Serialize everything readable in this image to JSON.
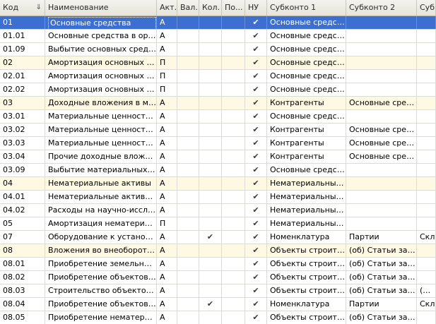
{
  "columns": [
    {
      "key": "code",
      "label": "Код"
    },
    {
      "key": "name",
      "label": "Наименование"
    },
    {
      "key": "act",
      "label": "Акт."
    },
    {
      "key": "val",
      "label": "Вал."
    },
    {
      "key": "kol",
      "label": "Кол."
    },
    {
      "key": "po",
      "label": "По..."
    },
    {
      "key": "nu",
      "label": "НУ"
    },
    {
      "key": "sub1",
      "label": "Субконто 1"
    },
    {
      "key": "sub2",
      "label": "Субконто 2"
    },
    {
      "key": "sub3",
      "label": "Субк"
    }
  ],
  "check_glyph": "✔",
  "colors": {
    "selected": "#3c6fd0",
    "group_row": "#fdf9e3"
  },
  "rows": [
    {
      "code": "01",
      "name": "Основные средства",
      "act": "А",
      "val": "",
      "kol": false,
      "po": "",
      "nu": true,
      "sub1": "Основные средства",
      "sub2": "",
      "sub3": "",
      "group": true,
      "selected": true
    },
    {
      "code": "01.01",
      "name": "Основные средства в орга...",
      "act": "А",
      "val": "",
      "kol": false,
      "po": "",
      "nu": true,
      "sub1": "Основные средства",
      "sub2": "",
      "sub3": "",
      "group": false,
      "selected": false
    },
    {
      "code": "01.09",
      "name": "Выбытие основных средств",
      "act": "А",
      "val": "",
      "kol": false,
      "po": "",
      "nu": true,
      "sub1": "Основные средства",
      "sub2": "",
      "sub3": "",
      "group": false,
      "selected": false
    },
    {
      "code": "02",
      "name": "Амортизация основных ср...",
      "act": "П",
      "val": "",
      "kol": false,
      "po": "",
      "nu": true,
      "sub1": "Основные средства",
      "sub2": "",
      "sub3": "",
      "group": true,
      "selected": false
    },
    {
      "code": "02.01",
      "name": "Амортизация основных ср...",
      "act": "П",
      "val": "",
      "kol": false,
      "po": "",
      "nu": true,
      "sub1": "Основные средства",
      "sub2": "",
      "sub3": "",
      "group": false,
      "selected": false
    },
    {
      "code": "02.02",
      "name": "Амортизация основных ср...",
      "act": "П",
      "val": "",
      "kol": false,
      "po": "",
      "nu": true,
      "sub1": "Основные средства",
      "sub2": "",
      "sub3": "",
      "group": false,
      "selected": false
    },
    {
      "code": "03",
      "name": "Доходные вложения в мат...",
      "act": "А",
      "val": "",
      "kol": false,
      "po": "",
      "nu": true,
      "sub1": "Контрагенты",
      "sub2": "Основные сред...",
      "sub3": "",
      "group": true,
      "selected": false
    },
    {
      "code": "03.01",
      "name": "Материальные ценности в ...",
      "act": "А",
      "val": "",
      "kol": false,
      "po": "",
      "nu": true,
      "sub1": "Основные средства",
      "sub2": "",
      "sub3": "",
      "group": false,
      "selected": false
    },
    {
      "code": "03.02",
      "name": "Материальные ценности п...",
      "act": "А",
      "val": "",
      "kol": false,
      "po": "",
      "nu": true,
      "sub1": "Контрагенты",
      "sub2": "Основные сред...",
      "sub3": "",
      "group": false,
      "selected": false
    },
    {
      "code": "03.03",
      "name": "Материальные ценности п...",
      "act": "А",
      "val": "",
      "kol": false,
      "po": "",
      "nu": true,
      "sub1": "Контрагенты",
      "sub2": "Основные сред...",
      "sub3": "",
      "group": false,
      "selected": false
    },
    {
      "code": "03.04",
      "name": "Прочие доходные вложения",
      "act": "А",
      "val": "",
      "kol": false,
      "po": "",
      "nu": true,
      "sub1": "Контрагенты",
      "sub2": "Основные сред...",
      "sub3": "",
      "group": false,
      "selected": false
    },
    {
      "code": "03.09",
      "name": "Выбытие материальных це...",
      "act": "А",
      "val": "",
      "kol": false,
      "po": "",
      "nu": true,
      "sub1": "Основные средства",
      "sub2": "",
      "sub3": "",
      "group": false,
      "selected": false
    },
    {
      "code": "04",
      "name": "Нематериальные активы",
      "act": "А",
      "val": "",
      "kol": false,
      "po": "",
      "nu": true,
      "sub1": "Нематериальные ...",
      "sub2": "",
      "sub3": "",
      "group": true,
      "selected": false
    },
    {
      "code": "04.01",
      "name": "Нематериальные активы о...",
      "act": "А",
      "val": "",
      "kol": false,
      "po": "",
      "nu": true,
      "sub1": "Нематериальные ...",
      "sub2": "",
      "sub3": "",
      "group": false,
      "selected": false
    },
    {
      "code": "04.02",
      "name": "Расходы на научно-исслед...",
      "act": "А",
      "val": "",
      "kol": false,
      "po": "",
      "nu": true,
      "sub1": "Нематериальные ...",
      "sub2": "",
      "sub3": "",
      "group": false,
      "selected": false
    },
    {
      "code": "05",
      "name": "Амортизация нематериал...",
      "act": "П",
      "val": "",
      "kol": false,
      "po": "",
      "nu": true,
      "sub1": "Нематериальные ...",
      "sub2": "",
      "sub3": "",
      "group": false,
      "selected": false
    },
    {
      "code": "07",
      "name": "Оборудование к установке",
      "act": "А",
      "val": "",
      "kol": true,
      "po": "",
      "nu": true,
      "sub1": "Номенклатура",
      "sub2": "Партии",
      "sub3": "Скл",
      "group": false,
      "selected": false
    },
    {
      "code": "08",
      "name": "Вложения во внеоборотны...",
      "act": "А",
      "val": "",
      "kol": false,
      "po": "",
      "nu": true,
      "sub1": "Объекты строите...",
      "sub2": "(об) Статьи зат...",
      "sub3": "",
      "group": true,
      "selected": false
    },
    {
      "code": "08.01",
      "name": "Приобретение земельных ...",
      "act": "А",
      "val": "",
      "kol": false,
      "po": "",
      "nu": true,
      "sub1": "Объекты строите...",
      "sub2": "(об) Статьи зат...",
      "sub3": "",
      "group": false,
      "selected": false
    },
    {
      "code": "08.02",
      "name": "Приобретение объектов п...",
      "act": "А",
      "val": "",
      "kol": false,
      "po": "",
      "nu": true,
      "sub1": "Объекты строите...",
      "sub2": "(об) Статьи зат...",
      "sub3": "",
      "group": false,
      "selected": false
    },
    {
      "code": "08.03",
      "name": "Строительство объектов о...",
      "act": "А",
      "val": "",
      "kol": false,
      "po": "",
      "nu": true,
      "sub1": "Объекты строите...",
      "sub2": "(об) Статьи зат...",
      "sub3": "(об)",
      "group": false,
      "selected": false
    },
    {
      "code": "08.04",
      "name": "Приобретение объектов о...",
      "act": "А",
      "val": "",
      "kol": true,
      "po": "",
      "nu": true,
      "sub1": "Номенклатура",
      "sub2": "Партии",
      "sub3": "Скл",
      "group": false,
      "selected": false
    },
    {
      "code": "08.05",
      "name": "Приобретение нематериал...",
      "act": "А",
      "val": "",
      "kol": false,
      "po": "",
      "nu": true,
      "sub1": "Объекты строите...",
      "sub2": "(об) Статьи зат...",
      "sub3": "",
      "group": false,
      "selected": false
    }
  ]
}
